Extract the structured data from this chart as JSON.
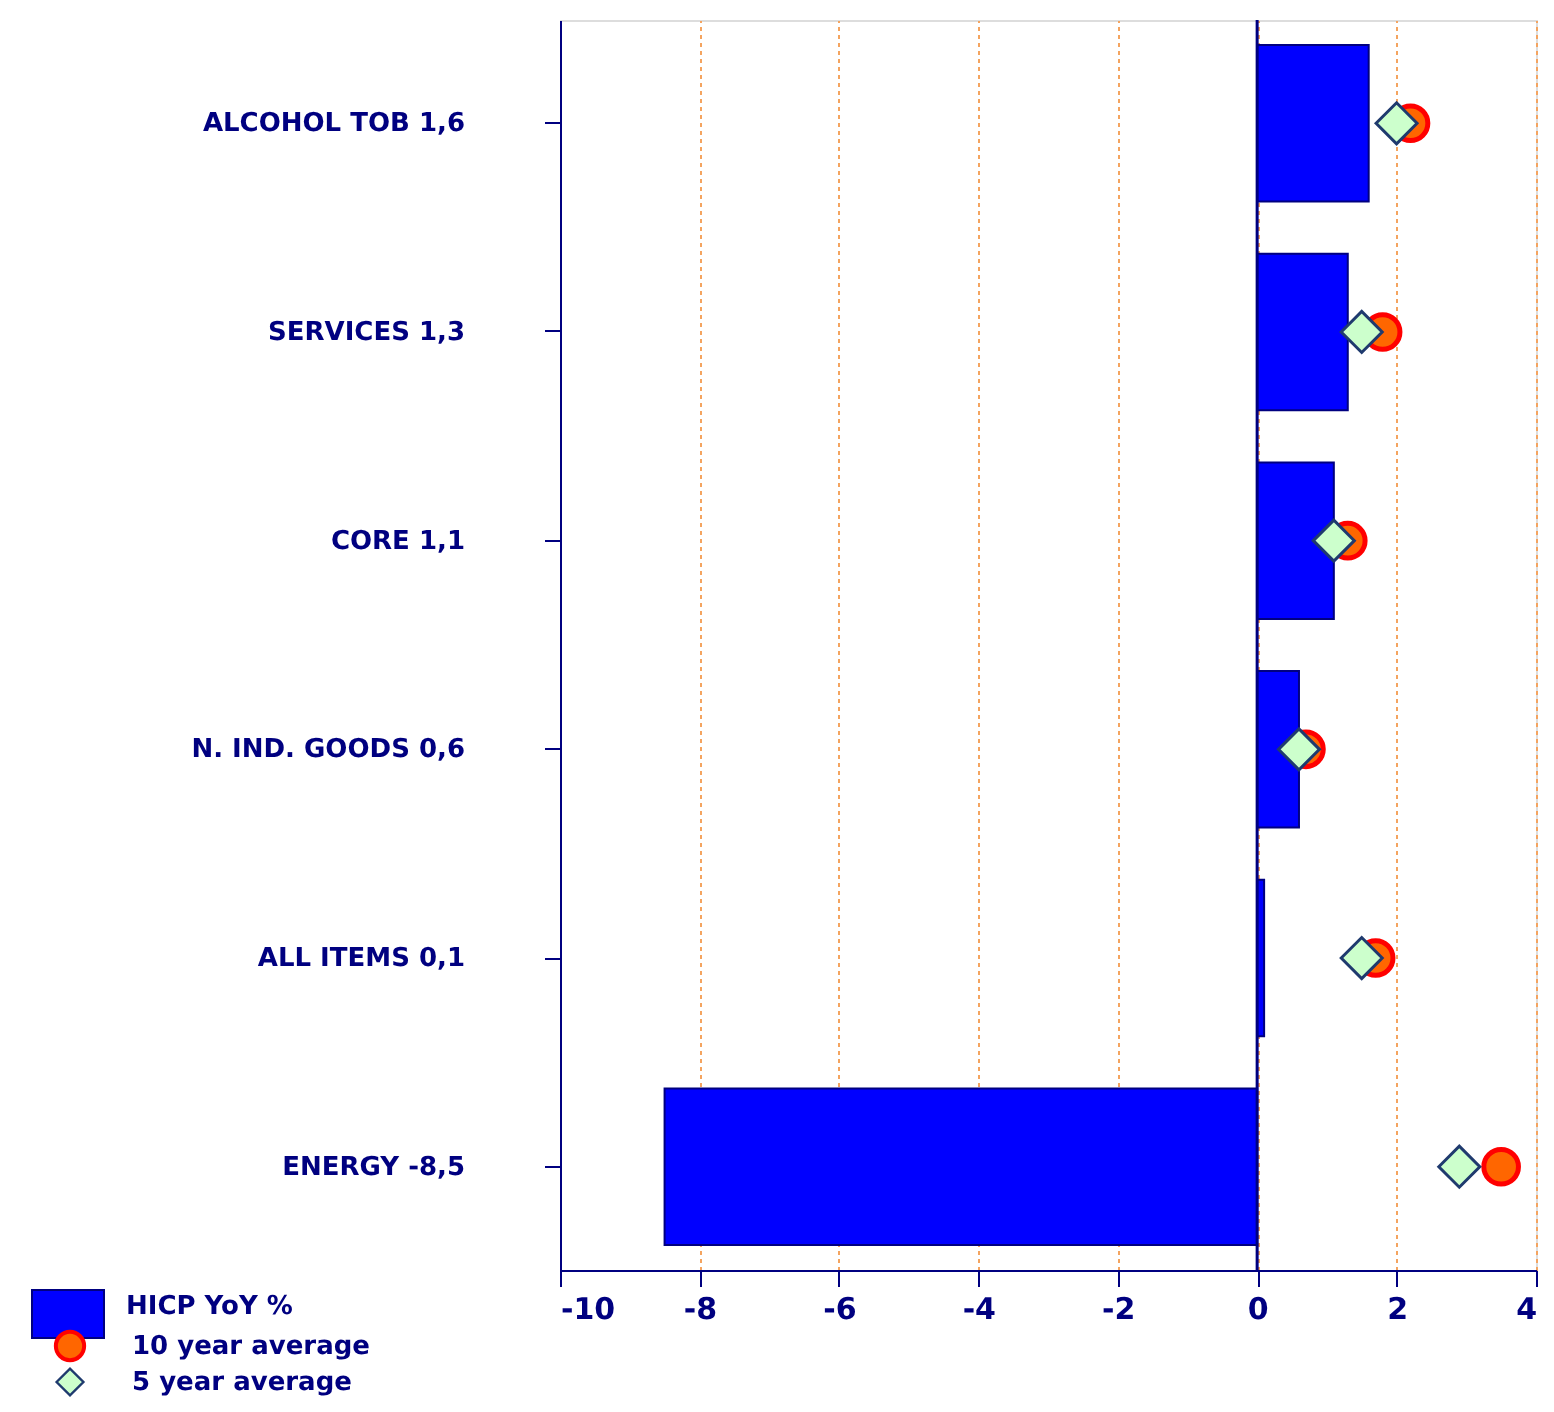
{
  "chart_data": {
    "type": "bar",
    "orientation": "horizontal",
    "categories": [
      "ALCOHOL TOB  1,6",
      "SERVICES 1,3",
      "CORE 1,1",
      "N. IND. GOODS 0,6",
      "ALL ITEMS 0,1",
      "ENERGY -8,5"
    ],
    "series": [
      {
        "name": "HICP YoY %",
        "color": "#0000ff",
        "values": [
          1.6,
          1.3,
          1.1,
          0.6,
          0.1,
          -8.5
        ]
      },
      {
        "name": "10 year average",
        "type": "scatter",
        "marker": "circle",
        "color": "#ff6600",
        "values": [
          2.2,
          1.8,
          1.3,
          0.7,
          1.7,
          3.5
        ]
      },
      {
        "name": "5 year average",
        "type": "scatter",
        "marker": "diamond",
        "color": "#ccffcc",
        "values": [
          2.0,
          1.5,
          1.1,
          0.6,
          1.5,
          2.9
        ]
      }
    ],
    "xlim": [
      -10,
      4
    ],
    "xticks": [
      -10,
      -8,
      -6,
      -4,
      -2,
      0,
      2,
      4
    ],
    "grid": "x",
    "legend": "bottom left",
    "ref_lines": [
      {
        "axis": "x",
        "value": 0,
        "color": "#000080"
      }
    ]
  }
}
